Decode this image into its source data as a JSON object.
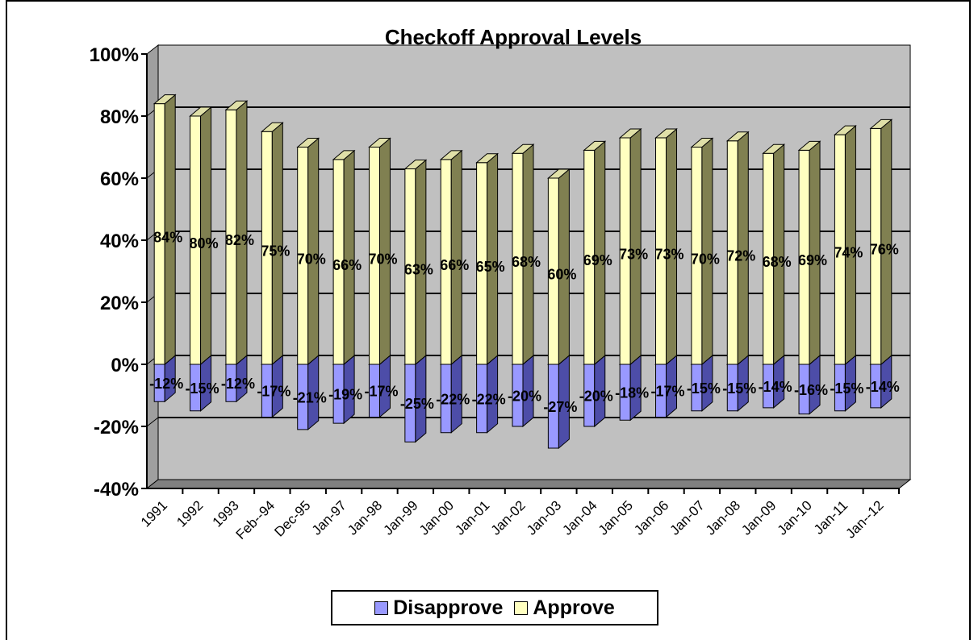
{
  "chart_data": {
    "type": "bar",
    "title": "Checkoff Approval Levels",
    "categories": [
      "1991",
      "1992",
      "1993",
      "Feb--94",
      "Dec-95",
      "Jan-97",
      "Jan-98",
      "Jan-99",
      "Jan-00",
      "Jan-01",
      "Jan-02",
      "Jan-03",
      "Jan-04",
      "Jan-05",
      "Jan-06",
      "Jan-07",
      "Jan-08",
      "Jan-09",
      "Jan-10",
      "Jan-11",
      "Jan--12"
    ],
    "series": [
      {
        "name": "Disapprove",
        "color": "#9999ff",
        "values": [
          -12,
          -15,
          -12,
          -17,
          -21,
          -19,
          -17,
          -25,
          -22,
          -22,
          -20,
          -27,
          -20,
          -18,
          -17,
          -15,
          -15,
          -14,
          -16,
          -15,
          -14
        ],
        "labels": [
          "-12%",
          "-15%",
          "-12%",
          "-17%",
          "-21%",
          "-19%",
          "-17%",
          "-25%",
          "-22%",
          "-22%",
          "-20%",
          "-27%",
          "-20%",
          "-18%",
          "-17%",
          "-15%",
          "-15%",
          "-14%",
          "-16%",
          "-15%",
          "-14%"
        ]
      },
      {
        "name": "Approve",
        "color": "#ffffc0",
        "values": [
          84,
          80,
          82,
          75,
          70,
          66,
          70,
          63,
          66,
          65,
          68,
          60,
          69,
          73,
          73,
          70,
          72,
          68,
          69,
          74,
          76
        ],
        "labels": [
          "84%",
          "80%",
          "82%",
          "75%",
          "70%",
          "66%",
          "70%",
          "63%",
          "66%",
          "65%",
          "68%",
          "60%",
          "69%",
          "73%",
          "73%",
          "70%",
          "72%",
          "68%",
          "69%",
          "74%",
          "76%"
        ]
      }
    ],
    "ylim": [
      -40,
      100
    ],
    "ytick_labels": [
      "-40%",
      "-20%",
      "0%",
      "20%",
      "40%",
      "60%",
      "80%",
      "100%"
    ],
    "grid": true,
    "legend_position": "bottom",
    "wall_color": "#c0c0c0"
  }
}
